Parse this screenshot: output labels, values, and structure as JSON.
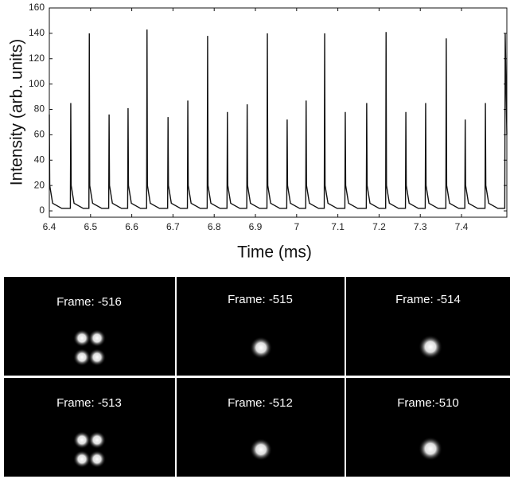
{
  "chart_data": {
    "type": "line",
    "xlabel": "Time (ms)",
    "ylabel": "Intensity (arb. units)",
    "xlim": [
      6.4,
      7.51
    ],
    "ylim": [
      -5,
      160
    ],
    "xticks": [
      6.4,
      6.5,
      6.6,
      6.7,
      6.8,
      6.9,
      7,
      7.1,
      7.2,
      7.3,
      7.4
    ],
    "yticks": [
      0,
      20,
      40,
      60,
      80,
      100,
      120,
      140,
      160
    ],
    "color": "#111111",
    "x": [
      6.4,
      6.401,
      6.408,
      6.43,
      6.451,
      6.452,
      6.453,
      6.46,
      6.482,
      6.496,
      6.497,
      6.498,
      6.505,
      6.527,
      6.544,
      6.545,
      6.546,
      6.553,
      6.575,
      6.59,
      6.591,
      6.592,
      6.599,
      6.621,
      6.636,
      6.637,
      6.638,
      6.645,
      6.667,
      6.687,
      6.688,
      6.689,
      6.696,
      6.718,
      6.735,
      6.736,
      6.737,
      6.744,
      6.766,
      6.783,
      6.784,
      6.785,
      6.792,
      6.814,
      6.831,
      6.832,
      6.833,
      6.84,
      6.862,
      6.879,
      6.88,
      6.881,
      6.888,
      6.91,
      6.928,
      6.929,
      6.93,
      6.937,
      6.959,
      6.976,
      6.977,
      6.978,
      6.985,
      7.007,
      7.022,
      7.023,
      7.024,
      7.031,
      7.053,
      7.067,
      7.068,
      7.069,
      7.076,
      7.098,
      7.117,
      7.118,
      7.119,
      7.126,
      7.148,
      7.169,
      7.17,
      7.171,
      7.178,
      7.2,
      7.216,
      7.217,
      7.218,
      7.225,
      7.247,
      7.264,
      7.265,
      7.266,
      7.273,
      7.295,
      7.312,
      7.313,
      7.314,
      7.321,
      7.343,
      7.362,
      7.363,
      7.364,
      7.371,
      7.393,
      7.408,
      7.409,
      7.41,
      7.417,
      7.439,
      7.457,
      7.458,
      7.459,
      7.466,
      7.488,
      7.505,
      7.506,
      7.51
    ],
    "values": [
      76,
      20,
      6,
      2,
      2,
      85,
      20,
      6,
      2,
      2,
      140,
      20,
      6,
      2,
      2,
      76,
      20,
      6,
      2,
      2,
      81,
      20,
      6,
      2,
      2,
      143,
      20,
      6,
      2,
      2,
      74,
      20,
      6,
      2,
      2,
      87,
      20,
      6,
      2,
      2,
      138,
      20,
      6,
      2,
      2,
      78,
      20,
      6,
      2,
      2,
      84,
      20,
      6,
      2,
      2,
      140,
      20,
      6,
      2,
      2,
      72,
      20,
      6,
      2,
      2,
      87,
      20,
      6,
      2,
      2,
      140,
      20,
      6,
      2,
      2,
      78,
      20,
      6,
      2,
      2,
      85,
      20,
      6,
      2,
      2,
      141,
      20,
      6,
      2,
      2,
      78,
      20,
      6,
      2,
      2,
      85,
      20,
      6,
      2,
      2,
      136,
      20,
      6,
      2,
      2,
      72,
      20,
      6,
      2,
      2,
      85,
      20,
      6,
      2,
      2,
      140,
      60
    ]
  },
  "frames": [
    "Frame: -516",
    "Frame: -515",
    "Frame: -514",
    "Frame: -513",
    "Frame: -512",
    "Frame:-510"
  ]
}
